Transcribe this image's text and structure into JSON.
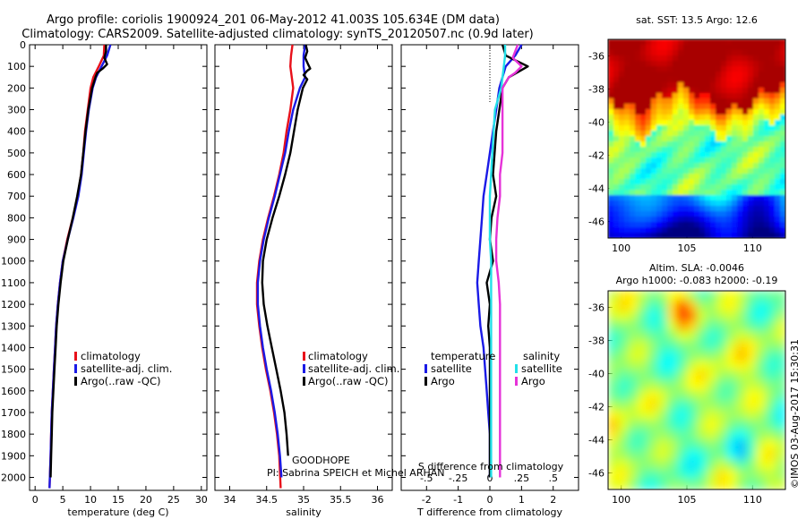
{
  "title_line1": "Argo profile: coriolis 1900924_201 06-May-2012 41.003S 105.634E (DM data)",
  "title_line2": "Climatology: CARS2009. Satellite-adjusted climatology: synTS_20120507.nc (0.9d later)",
  "colors": {
    "climatology": "#e8101a",
    "satellite": "#1a1ae6",
    "argo": "#000000",
    "sat_salinity": "#22e0e8",
    "argo_salinity": "#e632d8"
  },
  "temp_panel": {
    "xlabel": "temperature (deg C)",
    "legend": [
      "climatology",
      "satellite-adj. clim.",
      "Argo(..raw -QC)"
    ]
  },
  "sal_panel": {
    "xlabel": "salinity",
    "legend": [
      "climatology",
      "satellite-adj. clim.",
      "Argo(..raw -QC)"
    ],
    "annotation1": "GOODHOPE",
    "annotation2": "PI: Sabrina SPEICH et Michel ARHAN"
  },
  "diff_panel": {
    "xlabel": "T difference from climatology",
    "xlabel_top": "S difference from climatology",
    "legend_head_t": "temperature",
    "legend_head_s": "salinity",
    "legend_t": [
      "satellite",
      "Argo"
    ],
    "legend_s": [
      "satellite",
      "Argo"
    ]
  },
  "sst_map": {
    "title": "sat. SST: 13.5 Argo: 12.6"
  },
  "sla_map": {
    "title1": "Altim. SLA: -0.0046",
    "title2": "Argo h1000: -0.083 h2000: -0.19"
  },
  "footer": "©IMOS 03-Aug-2017 15:30:31",
  "chart_data": [
    {
      "type": "line",
      "xlabel": "temperature (deg C)",
      "ylabel": "",
      "xlim": [
        -1,
        31
      ],
      "ylim": [
        2060,
        0
      ],
      "xticks": [
        0,
        5,
        10,
        15,
        20,
        25,
        30
      ],
      "yticks": [
        0,
        100,
        200,
        300,
        400,
        500,
        600,
        700,
        800,
        900,
        1000,
        1100,
        1200,
        1300,
        1400,
        1500,
        1600,
        1700,
        1800,
        1900,
        2000
      ],
      "series": [
        {
          "name": "climatology",
          "color": "#e8101a",
          "depth": [
            0,
            50,
            100,
            150,
            200,
            300,
            400,
            500,
            600,
            700,
            800,
            900,
            1000,
            1100,
            1200,
            1300,
            1400,
            1500,
            1600,
            1700,
            1800,
            1900,
            2050
          ],
          "values": [
            12.5,
            12.4,
            11.5,
            10.5,
            10.0,
            9.5,
            9.0,
            8.7,
            8.3,
            7.7,
            6.8,
            5.8,
            5.0,
            4.5,
            4.1,
            3.8,
            3.6,
            3.4,
            3.2,
            3.0,
            2.9,
            2.8,
            2.6
          ]
        },
        {
          "name": "satellite-adj. clim.",
          "color": "#1a1ae6",
          "depth": [
            0,
            50,
            100,
            150,
            200,
            300,
            400,
            500,
            600,
            700,
            800,
            900,
            1000,
            1100,
            1200,
            1300,
            1400,
            1500,
            1600,
            1700,
            1800,
            1900,
            2050
          ],
          "values": [
            13.6,
            13.0,
            12.0,
            11.0,
            10.4,
            9.7,
            9.2,
            8.8,
            8.4,
            7.8,
            6.9,
            5.9,
            5.0,
            4.5,
            4.1,
            3.8,
            3.6,
            3.4,
            3.2,
            3.0,
            2.9,
            2.8,
            2.6
          ]
        },
        {
          "name": "Argo(..raw -QC)",
          "color": "#000000",
          "depth": [
            0,
            30,
            60,
            90,
            110,
            130,
            150,
            200,
            300,
            400,
            500,
            600,
            700,
            800,
            900,
            1000,
            1100,
            1200,
            1300,
            1400,
            1500,
            1600,
            1700,
            1800,
            1900,
            2000
          ],
          "values": [
            12.8,
            12.8,
            12.5,
            13.0,
            12.2,
            11.2,
            10.9,
            10.3,
            9.6,
            9.1,
            8.7,
            8.3,
            7.6,
            6.8,
            5.9,
            5.1,
            4.6,
            4.2,
            3.9,
            3.7,
            3.5,
            3.3,
            3.1,
            3.0,
            2.9,
            2.8
          ]
        }
      ]
    },
    {
      "type": "line",
      "xlabel": "salinity",
      "xlim": [
        33.8,
        36.2
      ],
      "ylim": [
        2060,
        0
      ],
      "xticks": [
        34,
        34.5,
        35,
        35.5,
        36
      ],
      "series": [
        {
          "name": "climatology",
          "color": "#e8101a",
          "depth": [
            0,
            50,
            100,
            150,
            200,
            300,
            400,
            500,
            600,
            700,
            800,
            900,
            1000,
            1100,
            1200,
            1300,
            1400,
            1500,
            1600,
            1700,
            1800,
            1900,
            2050
          ],
          "values": [
            34.85,
            34.83,
            34.82,
            34.84,
            34.86,
            34.82,
            34.77,
            34.73,
            34.67,
            34.6,
            34.52,
            34.45,
            34.4,
            34.37,
            34.37,
            34.4,
            34.44,
            34.49,
            34.55,
            34.6,
            34.64,
            34.67,
            34.69
          ]
        },
        {
          "name": "satellite-adj. clim.",
          "color": "#1a1ae6",
          "depth": [
            0,
            50,
            100,
            150,
            200,
            300,
            400,
            500,
            600,
            700,
            800,
            900,
            1000,
            1100,
            1200,
            1300,
            1400,
            1500,
            1600,
            1700,
            1800,
            1900,
            2000
          ],
          "values": [
            35.02,
            35.0,
            35.0,
            35.02,
            34.95,
            34.86,
            34.8,
            34.75,
            34.68,
            34.61,
            34.53,
            34.46,
            34.41,
            34.38,
            34.38,
            34.41,
            34.45,
            34.5,
            34.56,
            34.61,
            34.65,
            34.68,
            34.7
          ]
        },
        {
          "name": "Argo(..raw -QC)",
          "color": "#000000",
          "depth": [
            0,
            30,
            60,
            90,
            110,
            120,
            140,
            160,
            200,
            300,
            400,
            500,
            600,
            700,
            800,
            900,
            1000,
            1100,
            1200,
            1300,
            1400,
            1500,
            1600,
            1700,
            1800,
            1900
          ],
          "values": [
            35.03,
            35.05,
            35.02,
            35.06,
            35.09,
            35.05,
            35.0,
            35.05,
            34.99,
            34.92,
            34.87,
            34.82,
            34.75,
            34.67,
            34.58,
            34.5,
            34.45,
            34.44,
            34.46,
            34.51,
            34.57,
            34.63,
            34.69,
            34.74,
            34.77,
            34.79
          ]
        }
      ]
    },
    {
      "type": "line",
      "xlabel": "T difference from climatology",
      "xlabel_top": "S difference from climatology",
      "xlim": [
        -2.8,
        2.8
      ],
      "ylim": [
        2060,
        0
      ],
      "xticks": [
        -2,
        -1,
        0,
        1,
        2
      ],
      "xticks_s": [
        -0.5,
        -0.25,
        0,
        0.25,
        0.5
      ],
      "series": [
        {
          "name": "temperature satellite",
          "color": "#1a1ae6",
          "depth": [
            0,
            50,
            100,
            150,
            200,
            300,
            400,
            500,
            600,
            700,
            800,
            900,
            1000,
            1100,
            1200,
            1300,
            1400,
            1500,
            1600,
            1700,
            1800,
            1900,
            2000
          ],
          "values": [
            1.0,
            0.8,
            0.5,
            0.4,
            0.3,
            0.2,
            0.1,
            0.0,
            -0.1,
            -0.2,
            -0.25,
            -0.3,
            -0.35,
            -0.4,
            -0.35,
            -0.3,
            -0.2,
            -0.15,
            -0.1,
            -0.05,
            0.0,
            0.0,
            0.0
          ]
        },
        {
          "name": "temperature Argo",
          "color": "#000000",
          "depth": [
            0,
            50,
            100,
            150,
            200,
            300,
            400,
            500,
            600,
            700,
            800,
            900,
            1000,
            1100,
            1200,
            1300,
            1400,
            1500,
            1600,
            1700,
            1800,
            1900,
            2000
          ],
          "values": [
            0.4,
            0.5,
            1.2,
            0.6,
            0.4,
            0.3,
            0.2,
            0.15,
            0.1,
            0.2,
            0.05,
            0.0,
            0.1,
            -0.1,
            0.0,
            -0.05,
            0.0,
            0.0,
            0.0,
            0.0,
            0.0,
            0.0,
            0.0
          ]
        },
        {
          "name": "salinity satellite",
          "color": "#22e0e8",
          "depth": [
            0,
            50,
            100,
            150,
            200,
            300,
            400,
            500,
            600,
            700,
            800,
            900,
            1000,
            1100,
            1200,
            1300,
            1400,
            1500,
            1600,
            1700,
            1800,
            1900,
            2000
          ],
          "values": [
            0.12,
            0.12,
            0.11,
            0.1,
            0.09,
            0.04,
            0.03,
            0.02,
            0.01,
            0.0,
            0.0,
            0.0,
            0.01,
            0.01,
            0.01,
            0.01,
            0.01,
            0.01,
            0.01,
            0.01,
            0.01,
            0.01,
            0.01
          ]
        },
        {
          "name": "salinity Argo",
          "color": "#e632d8",
          "depth": [
            0,
            30,
            60,
            100,
            130,
            150,
            200,
            300,
            400,
            500,
            600,
            700,
            800,
            900,
            1000,
            1100,
            1200,
            1300,
            1400,
            1500,
            1600,
            1700,
            1800,
            1900,
            2000
          ],
          "values": [
            0.22,
            0.2,
            0.18,
            0.25,
            0.2,
            0.15,
            0.1,
            0.1,
            0.1,
            0.1,
            0.08,
            0.08,
            0.06,
            0.05,
            0.05,
            0.07,
            0.08,
            0.08,
            0.08,
            0.08,
            0.08,
            0.08,
            0.08,
            0.08,
            0.08
          ]
        }
      ]
    },
    {
      "type": "heatmap",
      "title": "sat. SST: 13.5 Argo: 12.6",
      "xlim": [
        99,
        112.5
      ],
      "ylim": [
        -47,
        -35
      ],
      "xticks": [
        100,
        105,
        110
      ],
      "yticks": [
        -36,
        -38,
        -40,
        -42,
        -44,
        -46
      ],
      "argo_position": [
        105.634,
        -41.003
      ]
    },
    {
      "type": "heatmap",
      "title": "Altim. SLA: -0.0046",
      "xlim": [
        99,
        112.5
      ],
      "ylim": [
        -47,
        -35
      ],
      "xticks": [
        100,
        105,
        110
      ],
      "yticks": [
        -36,
        -38,
        -40,
        -42,
        -44,
        -46
      ],
      "argo_position": [
        105.634,
        -41.003
      ]
    }
  ]
}
